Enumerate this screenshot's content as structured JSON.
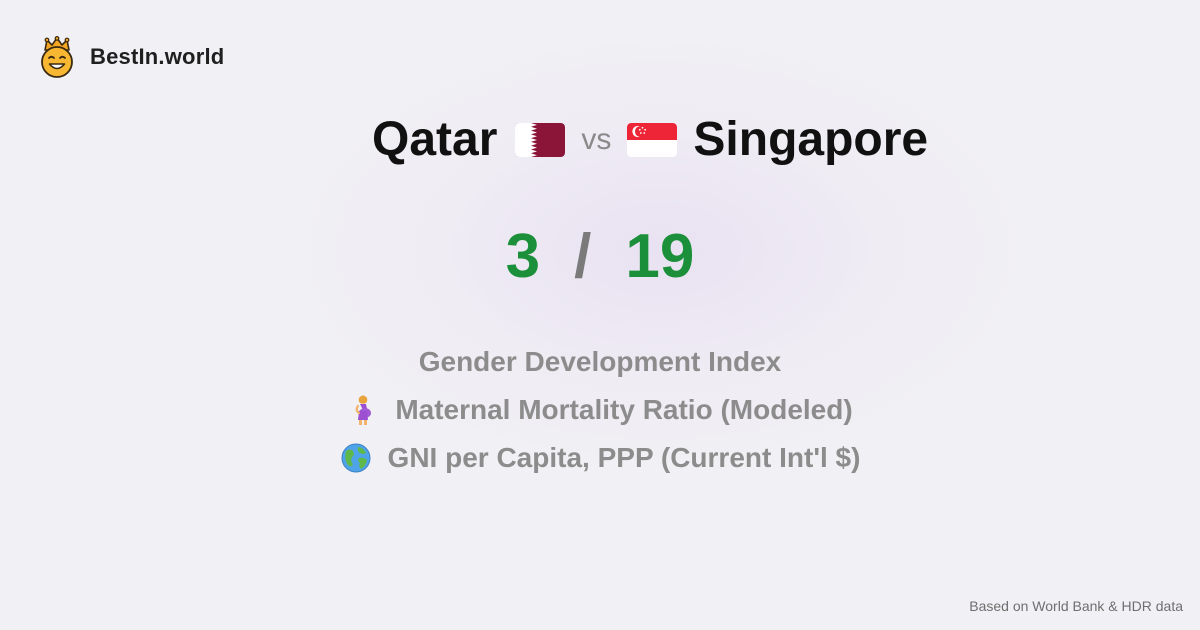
{
  "brand": {
    "name": "BestIn.world",
    "logo_icon": "crowned-smiley-icon"
  },
  "comparison": {
    "left_country": "Qatar",
    "left_flag_icon": "qatar-flag-icon",
    "vs_label": "vs",
    "right_country": "Singapore",
    "right_flag_icon": "singapore-flag-icon"
  },
  "score": {
    "left": "3",
    "separator": "/",
    "right": "19",
    "color": "#1c8f3a"
  },
  "metrics": [
    {
      "label": "Gender Development Index",
      "icon": ""
    },
    {
      "label": "Maternal Mortality Ratio (Modeled)",
      "icon": "pregnant-woman-icon"
    },
    {
      "label": "GNI per Capita, PPP (Current Int'l $)",
      "icon": "globe-icon"
    }
  ],
  "footer": {
    "source_note": "Based on World Bank & HDR data"
  }
}
